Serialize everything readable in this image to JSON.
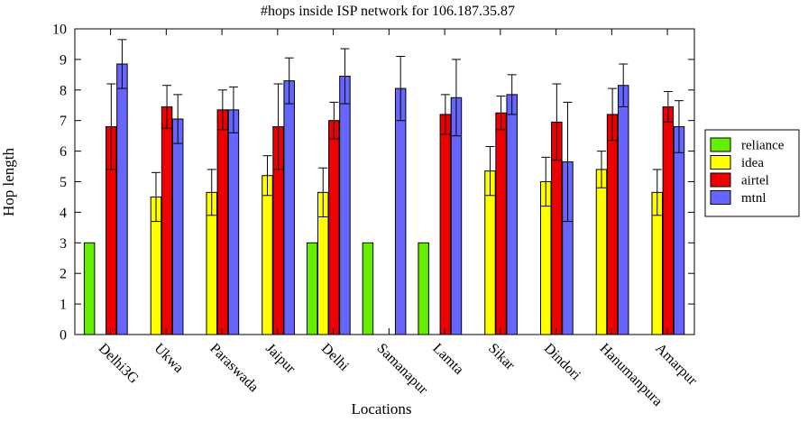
{
  "chart_data": {
    "type": "bar",
    "title": "#hops inside ISP network for 106.187.35.87",
    "xlabel": "Locations",
    "ylabel": "Hop length",
    "ylim": [
      0,
      10
    ],
    "yticks": [
      0,
      1,
      2,
      3,
      4,
      5,
      6,
      7,
      8,
      9,
      10
    ],
    "legend_position": "right",
    "categories": [
      "Delhi3G",
      "Ukwa",
      "Paraswada",
      "Jaipur",
      "Delhi",
      "Samanapur",
      "Lamta",
      "Sikar",
      "Dindori",
      "Hanumanpura",
      "Amarpur"
    ],
    "series": [
      {
        "name": "reliance",
        "color": "#66ee00",
        "values": [
          3,
          null,
          null,
          null,
          3,
          3,
          3,
          null,
          null,
          null,
          null
        ],
        "errors": [
          null,
          null,
          null,
          null,
          null,
          null,
          null,
          null,
          null,
          null,
          null
        ]
      },
      {
        "name": "idea",
        "color": "#ffff00",
        "values": [
          null,
          4.5,
          4.65,
          5.2,
          4.65,
          null,
          null,
          5.35,
          5.0,
          5.4,
          4.65
        ],
        "errors": [
          null,
          0.8,
          0.75,
          0.65,
          0.8,
          null,
          null,
          0.8,
          0.8,
          0.6,
          0.75
        ]
      },
      {
        "name": "airtel",
        "color": "#ee0000",
        "values": [
          6.8,
          7.45,
          7.35,
          6.8,
          7.0,
          null,
          7.2,
          7.25,
          6.95,
          7.2,
          7.45
        ],
        "errors": [
          1.4,
          0.7,
          0.65,
          1.4,
          0.6,
          null,
          0.65,
          0.55,
          1.25,
          0.85,
          0.5
        ]
      },
      {
        "name": "mtnl",
        "color": "#6666ff",
        "values": [
          8.85,
          7.05,
          7.35,
          8.3,
          8.45,
          8.05,
          7.75,
          7.85,
          5.65,
          8.15,
          6.8
        ],
        "errors": [
          0.8,
          0.8,
          0.75,
          0.75,
          0.9,
          1.05,
          1.25,
          0.65,
          1.95,
          0.7,
          0.85
        ]
      }
    ]
  }
}
